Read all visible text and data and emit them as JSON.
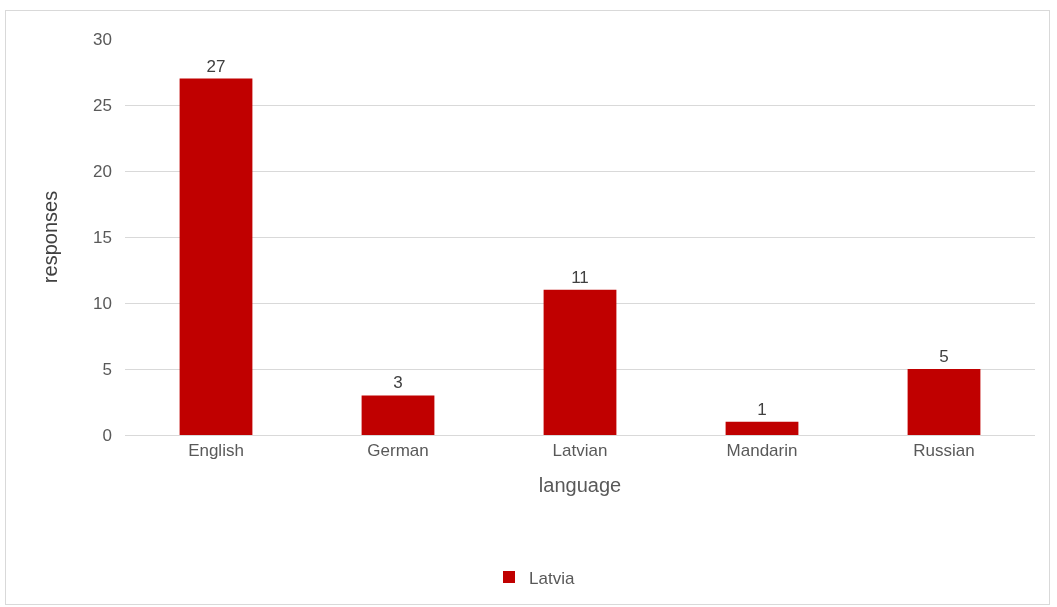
{
  "chart_data": {
    "type": "bar",
    "xlabel": "language",
    "ylabel": "responses",
    "categories": [
      "English",
      "German",
      "Latvian",
      "Mandarin",
      "Russian"
    ],
    "series": [
      {
        "name": "Latvia",
        "color": "#c00000",
        "values": [
          27,
          3,
          11,
          1,
          5
        ]
      }
    ],
    "ylim": [
      0,
      30
    ],
    "yticks": [
      0,
      5,
      10,
      15,
      20,
      25,
      30
    ],
    "grid": "y",
    "legend": "bottom",
    "data_labels": true
  }
}
